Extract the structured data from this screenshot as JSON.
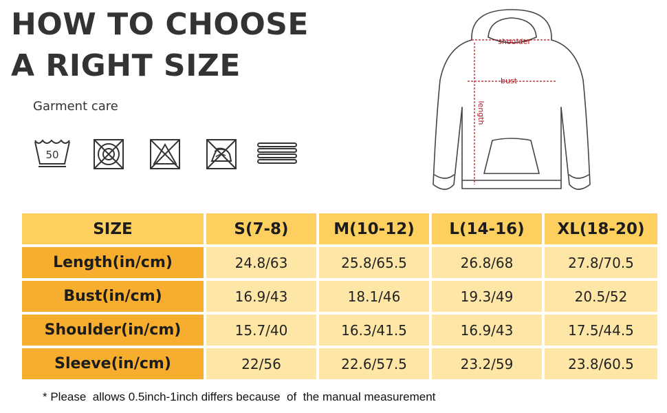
{
  "title": {
    "line1": "HOW TO CHOOSE",
    "line2": "A RIGHT SIZE"
  },
  "care": {
    "label": "Garment care",
    "icons": [
      "wash-50-icon",
      "no-tumble-dry-icon",
      "no-bleach-icon",
      "no-iron-icon",
      "dry-flat-icon"
    ],
    "wash_temp": "50"
  },
  "diagram": {
    "shoulder": "shoulder",
    "bust": "bust",
    "length": "length",
    "measure_color": "#b0171f"
  },
  "table": {
    "header": [
      "SIZE",
      "S(7-8)",
      "M(10-12)",
      "L(14-16)",
      "XL(18-20)"
    ],
    "rows": [
      {
        "label": "Length(in/cm)",
        "values": [
          "24.8/63",
          "25.8/65.5",
          "26.8/68",
          "27.8/70.5"
        ]
      },
      {
        "label": "Bust(in/cm)",
        "values": [
          "16.9/43",
          "18.1/46",
          "19.3/49",
          "20.5/52"
        ]
      },
      {
        "label": "Shoulder(in/cm)",
        "values": [
          "15.7/40",
          "16.3/41.5",
          "16.9/43",
          "17.5/44.5"
        ]
      },
      {
        "label": "Sleeve(in/cm)",
        "values": [
          "22/56",
          "22.6/57.5",
          "23.2/59",
          "23.8/60.5"
        ]
      }
    ],
    "colors": {
      "header": "#fdcf5e",
      "row_head": "#f7ad2e",
      "cell": "#fde6a6"
    }
  },
  "note": "* Please  allows 0.5inch-1inch differs because  of  the manual measurement"
}
